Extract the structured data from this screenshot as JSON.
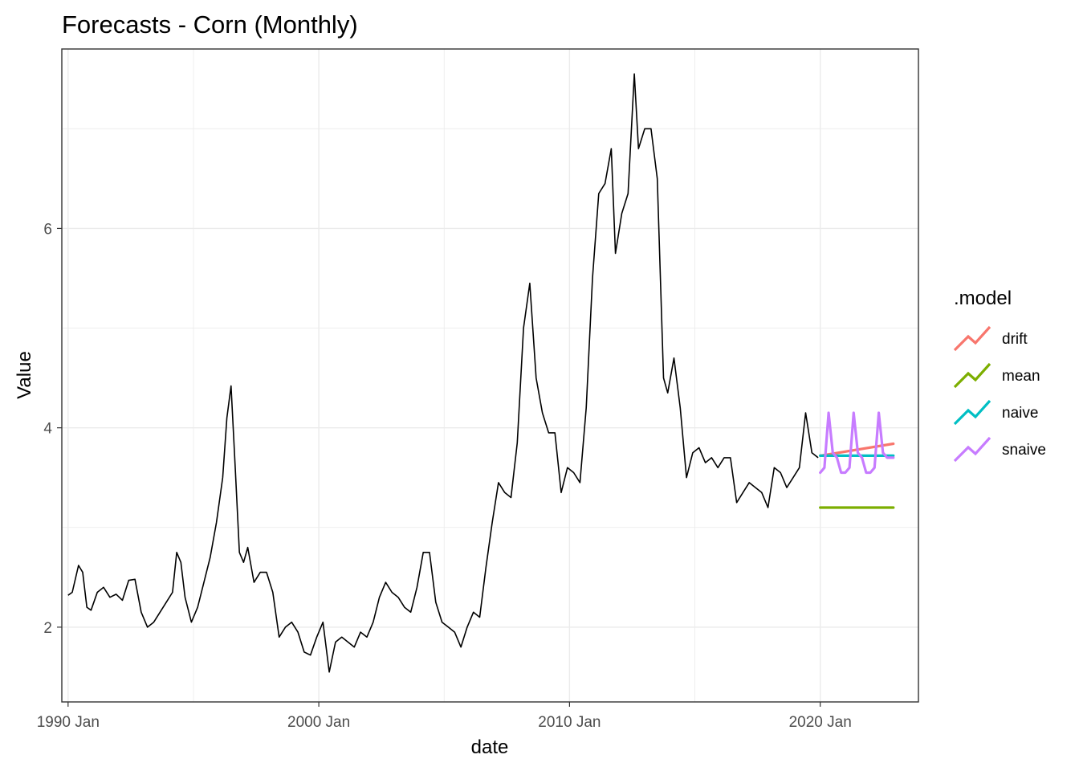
{
  "chart_data": {
    "type": "line",
    "title": "Forecasts - Corn (Monthly)",
    "xlabel": "date",
    "ylabel": "Value",
    "x_ticks": [
      "1990 Jan",
      "2000 Jan",
      "2010 Jan",
      "2020 Jan"
    ],
    "y_ticks": [
      "2",
      "4",
      "6"
    ],
    "ylim": [
      1.25,
      7.8
    ],
    "xlim": [
      "1989-10",
      "2023-12"
    ],
    "grid": true,
    "legend": {
      "title": ".model",
      "position": "right",
      "entries": [
        {
          "name": "drift",
          "color": "#F8766D"
        },
        {
          "name": "mean",
          "color": "#7CAE00"
        },
        {
          "name": "naive",
          "color": "#00BFC4"
        },
        {
          "name": "snaive",
          "color": "#C77CFF"
        }
      ]
    },
    "history": {
      "color": "#000000",
      "points": [
        [
          "1990-01",
          2.32
        ],
        [
          "1990-03",
          2.35
        ],
        [
          "1990-06",
          2.62
        ],
        [
          "1990-08",
          2.55
        ],
        [
          "1990-10",
          2.2
        ],
        [
          "1990-12",
          2.17
        ],
        [
          "1991-03",
          2.35
        ],
        [
          "1991-06",
          2.4
        ],
        [
          "1991-09",
          2.3
        ],
        [
          "1991-12",
          2.33
        ],
        [
          "1992-03",
          2.27
        ],
        [
          "1992-06",
          2.47
        ],
        [
          "1992-09",
          2.48
        ],
        [
          "1992-12",
          2.15
        ],
        [
          "1993-03",
          2.0
        ],
        [
          "1993-06",
          2.05
        ],
        [
          "1993-09",
          2.15
        ],
        [
          "1993-12",
          2.25
        ],
        [
          "1994-03",
          2.35
        ],
        [
          "1994-05",
          2.75
        ],
        [
          "1994-07",
          2.65
        ],
        [
          "1994-09",
          2.3
        ],
        [
          "1994-12",
          2.05
        ],
        [
          "1995-03",
          2.2
        ],
        [
          "1995-06",
          2.45
        ],
        [
          "1995-09",
          2.7
        ],
        [
          "1995-12",
          3.05
        ],
        [
          "1996-03",
          3.5
        ],
        [
          "1996-05",
          4.1
        ],
        [
          "1996-07",
          4.42
        ],
        [
          "1996-09",
          3.6
        ],
        [
          "1996-11",
          2.75
        ],
        [
          "1997-01",
          2.65
        ],
        [
          "1997-03",
          2.8
        ],
        [
          "1997-06",
          2.45
        ],
        [
          "1997-09",
          2.55
        ],
        [
          "1997-12",
          2.55
        ],
        [
          "1998-03",
          2.35
        ],
        [
          "1998-06",
          1.9
        ],
        [
          "1998-09",
          2.0
        ],
        [
          "1998-12",
          2.05
        ],
        [
          "1999-03",
          1.95
        ],
        [
          "1999-06",
          1.75
        ],
        [
          "1999-09",
          1.72
        ],
        [
          "1999-12",
          1.9
        ],
        [
          "2000-03",
          2.05
        ],
        [
          "2000-06",
          1.55
        ],
        [
          "2000-09",
          1.85
        ],
        [
          "2000-12",
          1.9
        ],
        [
          "2001-03",
          1.85
        ],
        [
          "2001-06",
          1.8
        ],
        [
          "2001-09",
          1.95
        ],
        [
          "2001-12",
          1.9
        ],
        [
          "2002-03",
          2.05
        ],
        [
          "2002-06",
          2.3
        ],
        [
          "2002-09",
          2.45
        ],
        [
          "2002-12",
          2.35
        ],
        [
          "2003-03",
          2.3
        ],
        [
          "2003-06",
          2.2
        ],
        [
          "2003-09",
          2.15
        ],
        [
          "2003-12",
          2.4
        ],
        [
          "2004-03",
          2.75
        ],
        [
          "2004-06",
          2.75
        ],
        [
          "2004-09",
          2.25
        ],
        [
          "2004-12",
          2.05
        ],
        [
          "2005-03",
          2.0
        ],
        [
          "2005-06",
          1.95
        ],
        [
          "2005-09",
          1.8
        ],
        [
          "2005-12",
          2.0
        ],
        [
          "2006-03",
          2.15
        ],
        [
          "2006-06",
          2.1
        ],
        [
          "2006-09",
          2.6
        ],
        [
          "2006-12",
          3.05
        ],
        [
          "2007-03",
          3.45
        ],
        [
          "2007-06",
          3.35
        ],
        [
          "2007-09",
          3.3
        ],
        [
          "2007-12",
          3.85
        ],
        [
          "2008-03",
          5.0
        ],
        [
          "2008-06",
          5.45
        ],
        [
          "2008-09",
          4.5
        ],
        [
          "2008-12",
          4.15
        ],
        [
          "2009-03",
          3.95
        ],
        [
          "2009-06",
          3.95
        ],
        [
          "2009-09",
          3.35
        ],
        [
          "2009-12",
          3.6
        ],
        [
          "2010-03",
          3.55
        ],
        [
          "2010-06",
          3.45
        ],
        [
          "2010-09",
          4.2
        ],
        [
          "2010-12",
          5.5
        ],
        [
          "2011-03",
          6.35
        ],
        [
          "2011-06",
          6.45
        ],
        [
          "2011-09",
          6.8
        ],
        [
          "2011-11",
          5.75
        ],
        [
          "2012-02",
          6.15
        ],
        [
          "2012-05",
          6.35
        ],
        [
          "2012-08",
          7.55
        ],
        [
          "2012-10",
          6.8
        ],
        [
          "2013-01",
          7.0
        ],
        [
          "2013-04",
          7.0
        ],
        [
          "2013-07",
          6.5
        ],
        [
          "2013-10",
          4.5
        ],
        [
          "2013-12",
          4.35
        ],
        [
          "2014-03",
          4.7
        ],
        [
          "2014-06",
          4.2
        ],
        [
          "2014-09",
          3.5
        ],
        [
          "2014-12",
          3.75
        ],
        [
          "2015-03",
          3.8
        ],
        [
          "2015-06",
          3.65
        ],
        [
          "2015-09",
          3.7
        ],
        [
          "2015-12",
          3.6
        ],
        [
          "2016-03",
          3.7
        ],
        [
          "2016-06",
          3.7
        ],
        [
          "2016-09",
          3.25
        ],
        [
          "2016-12",
          3.35
        ],
        [
          "2017-03",
          3.45
        ],
        [
          "2017-06",
          3.4
        ],
        [
          "2017-09",
          3.35
        ],
        [
          "2017-12",
          3.2
        ],
        [
          "2018-03",
          3.6
        ],
        [
          "2018-06",
          3.55
        ],
        [
          "2018-09",
          3.4
        ],
        [
          "2018-12",
          3.5
        ],
        [
          "2019-03",
          3.6
        ],
        [
          "2019-06",
          4.15
        ],
        [
          "2019-09",
          3.75
        ],
        [
          "2019-12",
          3.7
        ]
      ]
    },
    "forecasts": [
      {
        "name": "drift",
        "color": "#F8766D",
        "points": [
          [
            "2020-01",
            3.72
          ],
          [
            "2022-12",
            3.84
          ]
        ]
      },
      {
        "name": "mean",
        "color": "#7CAE00",
        "points": [
          [
            "2020-01",
            3.2
          ],
          [
            "2022-12",
            3.2
          ]
        ]
      },
      {
        "name": "naive",
        "color": "#00BFC4",
        "points": [
          [
            "2020-01",
            3.72
          ],
          [
            "2022-12",
            3.72
          ]
        ]
      },
      {
        "name": "snaive",
        "color": "#C77CFF",
        "points": [
          [
            "2020-01",
            3.55
          ],
          [
            "2020-03",
            3.6
          ],
          [
            "2020-05",
            4.15
          ],
          [
            "2020-07",
            3.75
          ],
          [
            "2020-09",
            3.7
          ],
          [
            "2020-11",
            3.55
          ],
          [
            "2021-01",
            3.55
          ],
          [
            "2021-03",
            3.6
          ],
          [
            "2021-05",
            4.15
          ],
          [
            "2021-07",
            3.75
          ],
          [
            "2021-09",
            3.7
          ],
          [
            "2021-11",
            3.55
          ],
          [
            "2022-01",
            3.55
          ],
          [
            "2022-03",
            3.6
          ],
          [
            "2022-05",
            4.15
          ],
          [
            "2022-07",
            3.75
          ],
          [
            "2022-09",
            3.7
          ],
          [
            "2022-12",
            3.7
          ]
        ]
      }
    ]
  }
}
